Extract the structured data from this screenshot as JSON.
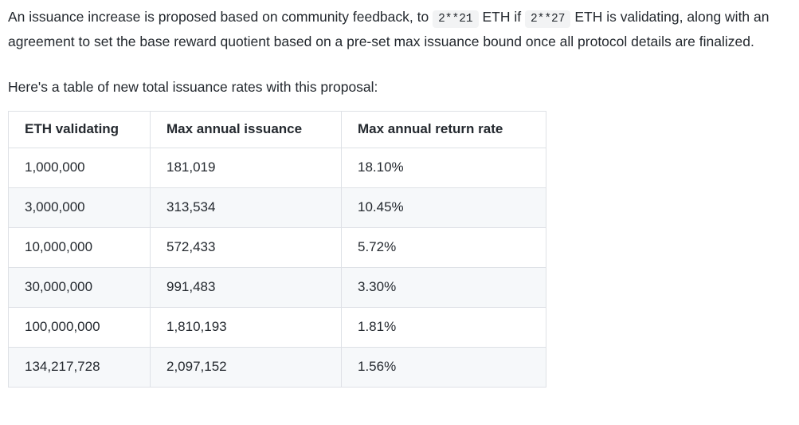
{
  "document": {
    "paragraph1": {
      "part1": "An issuance increase is proposed based on community feedback, to ",
      "code1": "2**21",
      "part2": " ETH if ",
      "code2": "2**27",
      "part3": " ETH is validating, along with an agreement to set the base reward quotient based on a pre-set max issuance bound once all protocol details are finalized."
    },
    "paragraph2": "Here's a table of new total issuance rates with this proposal:"
  },
  "table": {
    "headers": [
      "ETH validating",
      "Max annual issuance",
      "Max annual return rate"
    ],
    "rows": [
      [
        "1,000,000",
        "181,019",
        "18.10%"
      ],
      [
        "3,000,000",
        "313,534",
        "10.45%"
      ],
      [
        "10,000,000",
        "572,433",
        "5.72%"
      ],
      [
        "30,000,000",
        "991,483",
        "3.30%"
      ],
      [
        "100,000,000",
        "1,810,193",
        "1.81%"
      ],
      [
        "134,217,728",
        "2,097,152",
        "1.56%"
      ]
    ]
  },
  "colors": {
    "text": "#24292f",
    "inline_code_bg": "#f2f3f4",
    "table_border": "#dee1e6",
    "row_stripe_bg": "#f6f8fa",
    "background": "#ffffff"
  }
}
